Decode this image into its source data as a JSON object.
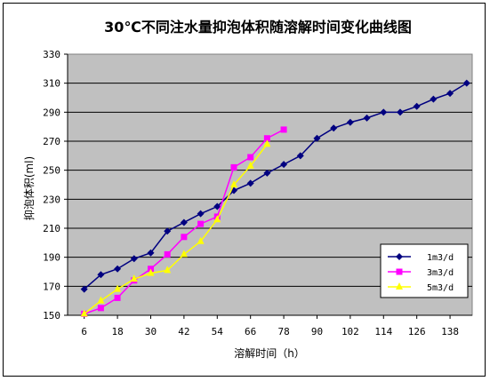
{
  "chart_data": {
    "type": "line",
    "title": "30℃不同注水量抑泡体积随溶解时间变化曲线图",
    "xlabel": "溶解时间（h）",
    "ylabel": "抑泡体积(ml)",
    "xlim": [
      0,
      146
    ],
    "ylim": [
      150,
      330
    ],
    "xticks": [
      6,
      18,
      30,
      42,
      54,
      66,
      78,
      90,
      102,
      114,
      126,
      138
    ],
    "yticks": [
      150,
      170,
      190,
      210,
      230,
      250,
      270,
      290,
      310,
      330
    ],
    "grid": "horizontal",
    "plot_background": "#c0c0c0",
    "legend_position": "bottom-right",
    "series": [
      {
        "name": "1m3/d",
        "color": "#000080",
        "marker": "diamond",
        "x": [
          6,
          12,
          18,
          24,
          30,
          36,
          42,
          48,
          54,
          60,
          66,
          72,
          78,
          84,
          90,
          96,
          102,
          108,
          114,
          120,
          126,
          132,
          138,
          144
        ],
        "y": [
          168,
          178,
          182,
          189,
          193,
          208,
          214,
          220,
          225,
          236,
          241,
          248,
          254,
          260,
          272,
          279,
          283,
          286,
          290,
          290,
          294,
          299,
          303,
          310
        ]
      },
      {
        "name": "3m3/d",
        "color": "#ff00ff",
        "marker": "square",
        "x": [
          6,
          12,
          18,
          24,
          30,
          36,
          42,
          48,
          54,
          60,
          66,
          72,
          78
        ],
        "y": [
          151,
          155,
          162,
          174,
          182,
          192,
          204,
          213,
          218,
          252,
          259,
          272,
          278
        ]
      },
      {
        "name": "5m3/d",
        "color": "#ffff00",
        "marker": "triangle",
        "x": [
          6,
          12,
          18,
          24,
          30,
          36,
          42,
          48,
          54,
          60,
          66,
          72
        ],
        "y": [
          151,
          160,
          168,
          175,
          179,
          181,
          192,
          201,
          216,
          240,
          253,
          268
        ]
      }
    ]
  }
}
